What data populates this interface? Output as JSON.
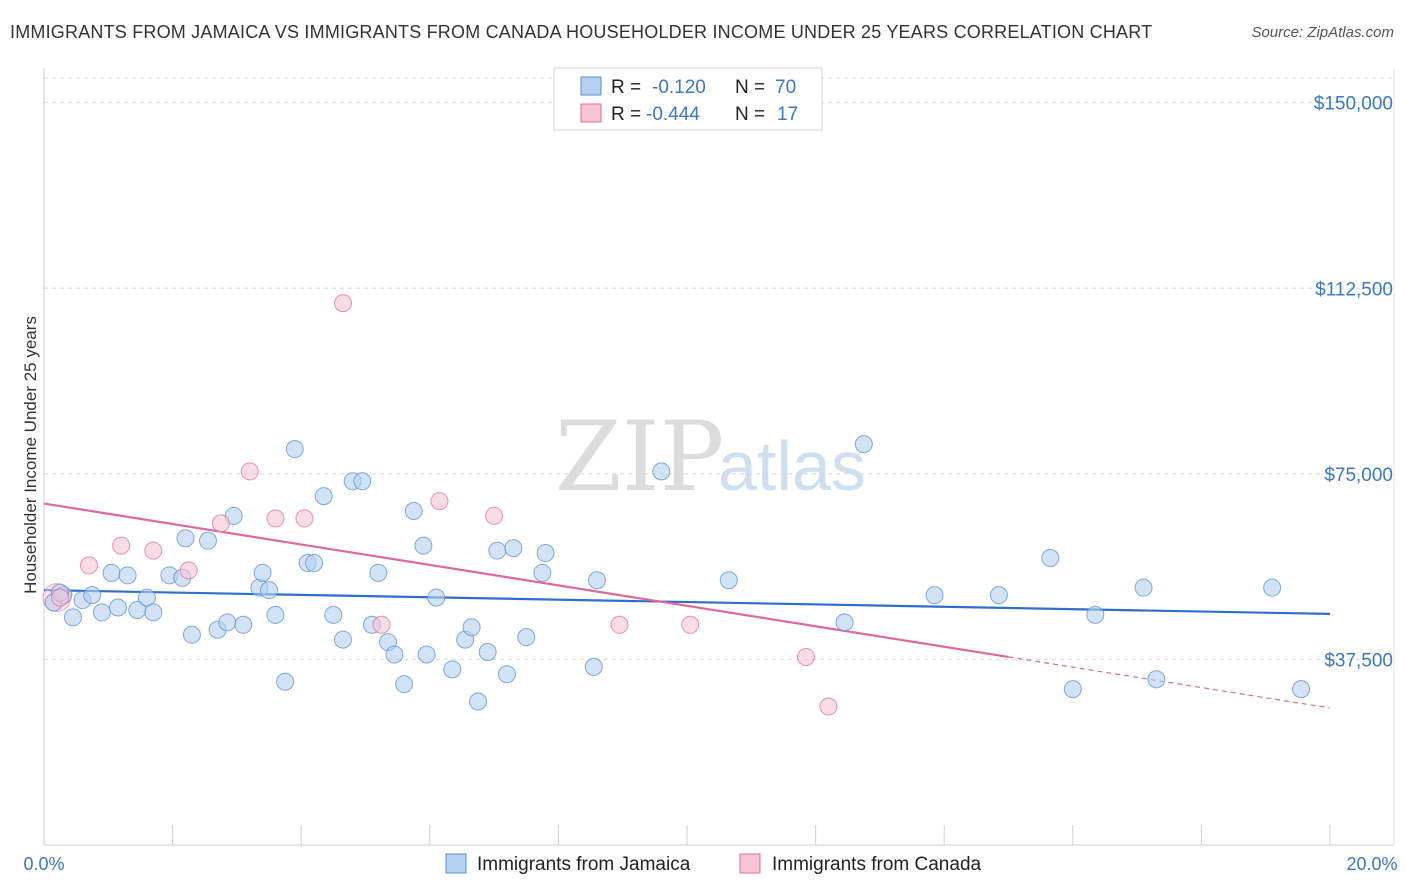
{
  "title": "IMMIGRANTS FROM JAMAICA VS IMMIGRANTS FROM CANADA HOUSEHOLDER INCOME UNDER 25 YEARS CORRELATION CHART",
  "source": "Source: ZipAtlas.com",
  "watermark": {
    "zip": "ZIP",
    "atlas": "atlas"
  },
  "legend_top": {
    "rows": [
      {
        "r_label": "R =",
        "r_value": "-0.120",
        "n_label": "N =",
        "n_value": "70"
      },
      {
        "r_label": "R =",
        "r_value": "-0.444",
        "n_label": "N =",
        "n_value": "17"
      }
    ]
  },
  "legend_bottom": {
    "items": [
      "Immigrants from Jamaica",
      "Immigrants from Canada"
    ]
  },
  "colors": {
    "jamaica": "#5b8fd6",
    "jamaica_fill": "#b6d0f0",
    "canada": "#e36d99",
    "canada_fill": "#f6c4d4",
    "tick_text": "#3a78c8"
  },
  "chart_data": {
    "type": "scatter",
    "ylabel": "Householder Income Under 25 years",
    "xlim": [
      0,
      20
    ],
    "ylim": [
      0,
      155000
    ],
    "x_tick_labels": [
      "0.0%",
      "20.0%"
    ],
    "y_ticks": [
      37500,
      75000,
      112500,
      150000
    ],
    "y_tick_labels": [
      "$37,500",
      "$75,000",
      "$112,500",
      "$150,000"
    ],
    "grid": true,
    "legend": "top-center",
    "series": [
      {
        "name": "Immigrants from Jamaica",
        "R": -0.12,
        "N": 70,
        "trend": {
          "x": [
            0,
            20
          ],
          "y": [
            51500,
            46700
          ]
        },
        "points": [
          [
            0.15,
            49000
          ],
          [
            0.3,
            50500
          ],
          [
            0.45,
            46000
          ],
          [
            0.6,
            49500
          ],
          [
            0.75,
            50500
          ],
          [
            0.9,
            47000
          ],
          [
            1.05,
            55000
          ],
          [
            1.15,
            48000
          ],
          [
            1.3,
            54500
          ],
          [
            1.45,
            47500
          ],
          [
            1.6,
            50000
          ],
          [
            1.7,
            47000
          ],
          [
            1.95,
            54500
          ],
          [
            2.15,
            54000
          ],
          [
            2.2,
            62000
          ],
          [
            2.3,
            42500
          ],
          [
            2.55,
            61500
          ],
          [
            2.7,
            43500
          ],
          [
            2.85,
            45000
          ],
          [
            2.95,
            66500
          ],
          [
            3.1,
            44500
          ],
          [
            3.35,
            52000
          ],
          [
            3.4,
            55000
          ],
          [
            3.5,
            51500
          ],
          [
            3.6,
            46500
          ],
          [
            3.75,
            33000
          ],
          [
            3.9,
            80000
          ],
          [
            4.1,
            57000
          ],
          [
            4.2,
            57000
          ],
          [
            4.35,
            70500
          ],
          [
            4.5,
            46500
          ],
          [
            4.65,
            41500
          ],
          [
            4.8,
            73500
          ],
          [
            4.95,
            73500
          ],
          [
            5.1,
            44500
          ],
          [
            5.2,
            55000
          ],
          [
            5.35,
            41000
          ],
          [
            5.45,
            38500
          ],
          [
            5.6,
            32500
          ],
          [
            5.75,
            67500
          ],
          [
            5.9,
            60500
          ],
          [
            5.95,
            38500
          ],
          [
            6.1,
            50000
          ],
          [
            6.35,
            35500
          ],
          [
            6.55,
            41500
          ],
          [
            6.65,
            44000
          ],
          [
            6.75,
            29000
          ],
          [
            6.9,
            39000
          ],
          [
            7.05,
            59500
          ],
          [
            7.2,
            34500
          ],
          [
            7.3,
            60000
          ],
          [
            7.5,
            42000
          ],
          [
            7.75,
            55000
          ],
          [
            7.8,
            59000
          ],
          [
            8.55,
            36000
          ],
          [
            8.6,
            53500
          ],
          [
            9.6,
            75500
          ],
          [
            10.65,
            53500
          ],
          [
            12.45,
            45000
          ],
          [
            12.75,
            81000
          ],
          [
            13.85,
            50500
          ],
          [
            14.85,
            50500
          ],
          [
            15.65,
            58000
          ],
          [
            16.0,
            31500
          ],
          [
            16.35,
            46500
          ],
          [
            17.1,
            52000
          ],
          [
            17.3,
            33500
          ],
          [
            19.1,
            52000
          ],
          [
            19.55,
            31500
          ],
          [
            0.25,
            51000
          ]
        ]
      },
      {
        "name": "Immigrants from Canada",
        "R": -0.444,
        "N": 17,
        "trend": {
          "x": [
            0,
            15
          ],
          "y": [
            69000,
            38000
          ]
        },
        "trend_dashed": {
          "x": [
            15,
            20
          ],
          "y": [
            38000,
            27700
          ]
        },
        "points": [
          [
            0.25,
            50000
          ],
          [
            0.7,
            56500
          ],
          [
            1.2,
            60500
          ],
          [
            1.7,
            59500
          ],
          [
            2.25,
            55500
          ],
          [
            2.75,
            65000
          ],
          [
            3.2,
            75500
          ],
          [
            3.6,
            66000
          ],
          [
            4.05,
            66000
          ],
          [
            4.65,
            109500
          ],
          [
            5.25,
            44500
          ],
          [
            6.15,
            69500
          ],
          [
            7.0,
            66500
          ],
          [
            8.95,
            44500
          ],
          [
            10.05,
            44500
          ],
          [
            11.85,
            38000
          ],
          [
            12.2,
            28000
          ]
        ]
      }
    ]
  }
}
